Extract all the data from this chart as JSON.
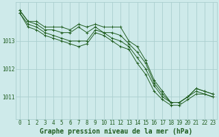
{
  "background_color": "#ceeaea",
  "grid_color": "#aacece",
  "line_color": "#1e5c1e",
  "xlabel": "Graphe pression niveau de la mer (hPa)",
  "xlabel_fontsize": 7,
  "tick_fontsize": 5.5,
  "xlim": [
    -0.5,
    23.5
  ],
  "ylim": [
    1010.2,
    1014.4
  ],
  "yticks": [
    1011,
    1012,
    1013
  ],
  "xticks": [
    0,
    1,
    2,
    3,
    4,
    5,
    6,
    7,
    8,
    9,
    10,
    11,
    12,
    13,
    14,
    15,
    16,
    17,
    18,
    19,
    20,
    21,
    22,
    23
  ],
  "series": [
    [
      1014.1,
      1013.7,
      1013.7,
      1013.5,
      1013.5,
      1013.5,
      1013.4,
      1013.6,
      1013.5,
      1013.6,
      1013.5,
      1013.5,
      1013.5,
      1013.0,
      1012.8,
      1012.3,
      1011.6,
      1011.2,
      1010.8,
      1010.8,
      1011.0,
      1011.3,
      1011.2,
      1011.1
    ],
    [
      1014.1,
      1013.7,
      1013.6,
      1013.4,
      1013.4,
      1013.3,
      1013.3,
      1013.5,
      1013.3,
      1013.5,
      1013.3,
      1013.3,
      1013.2,
      1012.9,
      1012.6,
      1012.2,
      1011.5,
      1011.1,
      1010.8,
      1010.8,
      1011.0,
      1011.3,
      1011.2,
      1011.1
    ],
    [
      1014.0,
      1013.6,
      1013.5,
      1013.3,
      1013.2,
      1013.1,
      1013.0,
      1013.0,
      1013.0,
      1013.4,
      1013.3,
      1013.1,
      1013.0,
      1012.8,
      1012.4,
      1012.0,
      1011.4,
      1011.0,
      1010.8,
      1010.8,
      1011.0,
      1011.2,
      1011.1,
      1011.0
    ],
    [
      1014.0,
      1013.5,
      1013.4,
      1013.2,
      1013.1,
      1013.0,
      1012.9,
      1012.8,
      1012.9,
      1013.3,
      1013.2,
      1013.0,
      1012.8,
      1012.7,
      1012.2,
      1011.8,
      1011.2,
      1010.9,
      1010.7,
      1010.7,
      1010.9,
      1011.1,
      1011.1,
      1011.0
    ]
  ]
}
